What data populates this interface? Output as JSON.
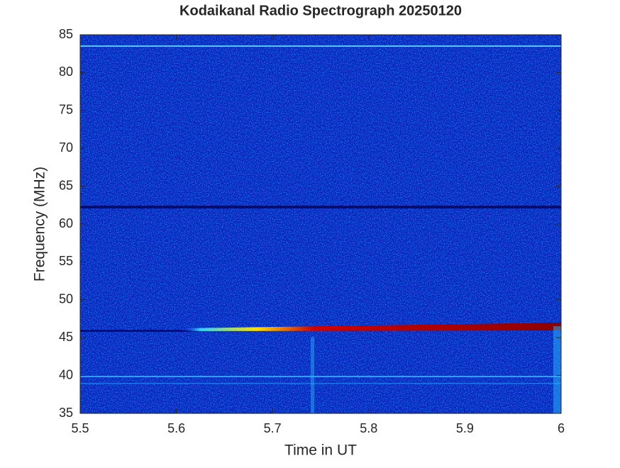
{
  "chart_data": {
    "type": "spectrogram",
    "title": "Kodaikanal Radio Spectrograph  20250120",
    "x_label": "Time in UT",
    "y_label": "Frequency (MHz)",
    "xlim": [
      5.5,
      6
    ],
    "xticks": [
      5.5,
      5.6,
      5.7,
      5.8,
      5.9,
      6
    ],
    "ylim": [
      35,
      85
    ],
    "yticks": [
      35,
      40,
      45,
      50,
      55,
      60,
      65,
      70,
      75,
      80,
      85
    ]
  }
}
